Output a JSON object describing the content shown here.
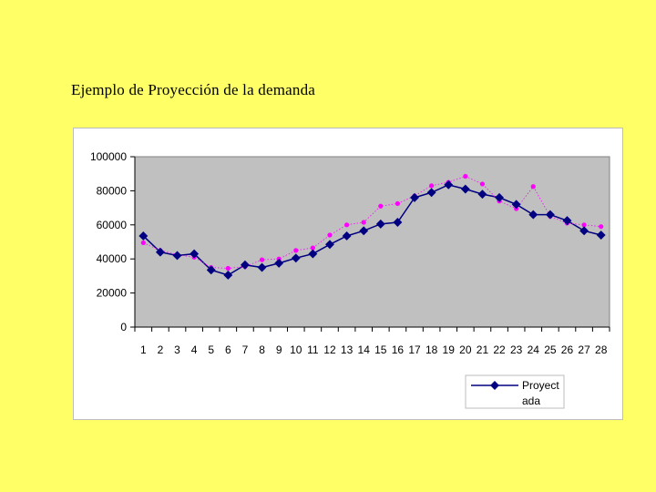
{
  "slide": {
    "title": "Ejemplo de Proyección de la demanda"
  },
  "chart_data": {
    "type": "line",
    "title": "",
    "xlabel": "",
    "ylabel": "",
    "categories": [
      "1",
      "2",
      "3",
      "4",
      "5",
      "6",
      "7",
      "8",
      "9",
      "10",
      "11",
      "12",
      "13",
      "14",
      "15",
      "16",
      "17",
      "18",
      "19",
      "20",
      "21",
      "22",
      "23",
      "24",
      "25",
      "26",
      "27",
      "28"
    ],
    "ylim": [
      0,
      100000
    ],
    "yticks": [
      "100000",
      "80000",
      "60000",
      "40000",
      "20000",
      "0"
    ],
    "grid": false,
    "legend_position": "bottom-right",
    "series": [
      {
        "name": "Proyectada",
        "style": "line-diamond",
        "color": "#000080",
        "values": [
          53500,
          44000,
          42000,
          43000,
          33500,
          30500,
          36500,
          35000,
          37500,
          40500,
          43000,
          48500,
          53500,
          56500,
          60500,
          61500,
          76000,
          79000,
          83500,
          81000,
          78000,
          76000,
          72000,
          66000,
          66000,
          62500,
          56500,
          54000
        ]
      },
      {
        "name": "",
        "style": "dotted-dots",
        "color": "#ff00ff",
        "values": [
          49500,
          45000,
          42500,
          41000,
          35000,
          34500,
          35500,
          39500,
          40000,
          45000,
          46500,
          54000,
          60000,
          61500,
          71000,
          72500,
          77000,
          83000,
          85000,
          88500,
          84000,
          74000,
          69500,
          82500,
          65000,
          61000,
          60000,
          59000
        ]
      }
    ],
    "legend_label_lines": [
      "Proyect",
      "ada"
    ]
  }
}
